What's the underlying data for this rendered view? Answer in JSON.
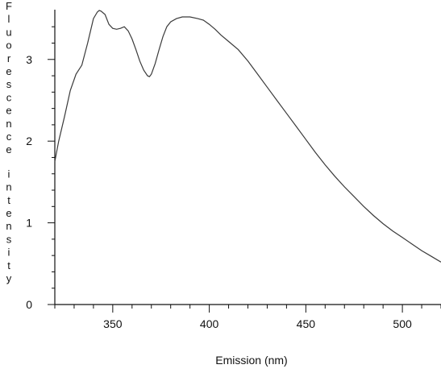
{
  "chart_data": {
    "type": "line",
    "xlabel": "Emission (nm)",
    "ylabel": "Fluorescence intensity",
    "xlim": [
      320,
      520
    ],
    "ylim": [
      0,
      3.55
    ],
    "x_ticks": [
      350,
      400,
      450,
      500
    ],
    "x_minor_step": 10,
    "y_ticks": [
      0,
      1,
      2,
      3
    ],
    "y_minor_step": 0.2,
    "grid": false,
    "line_color": "#3a3a3a",
    "series": [
      {
        "x": [
          320,
          322,
          325,
          328,
          331,
          334,
          337,
          340,
          342,
          343,
          344,
          346,
          348,
          350,
          352,
          354,
          356,
          358,
          360,
          362,
          364,
          366,
          368,
          369,
          370,
          372,
          374,
          376,
          378,
          380,
          383,
          386,
          390,
          394,
          397,
          400,
          403,
          406,
          410,
          415,
          420,
          425,
          430,
          435,
          440,
          445,
          450,
          455,
          460,
          465,
          470,
          475,
          480,
          485,
          490,
          495,
          500,
          505,
          510,
          515,
          520
        ],
        "y": [
          1.75,
          2.0,
          2.3,
          2.62,
          2.82,
          2.93,
          3.2,
          3.5,
          3.58,
          3.6,
          3.59,
          3.55,
          3.43,
          3.38,
          3.37,
          3.38,
          3.4,
          3.35,
          3.25,
          3.12,
          2.98,
          2.87,
          2.8,
          2.79,
          2.82,
          2.95,
          3.12,
          3.28,
          3.4,
          3.46,
          3.5,
          3.52,
          3.52,
          3.5,
          3.48,
          3.43,
          3.37,
          3.3,
          3.22,
          3.12,
          2.98,
          2.82,
          2.66,
          2.5,
          2.34,
          2.18,
          2.02,
          1.86,
          1.71,
          1.57,
          1.44,
          1.32,
          1.2,
          1.09,
          0.99,
          0.9,
          0.82,
          0.74,
          0.66,
          0.59,
          0.52
        ]
      }
    ]
  }
}
